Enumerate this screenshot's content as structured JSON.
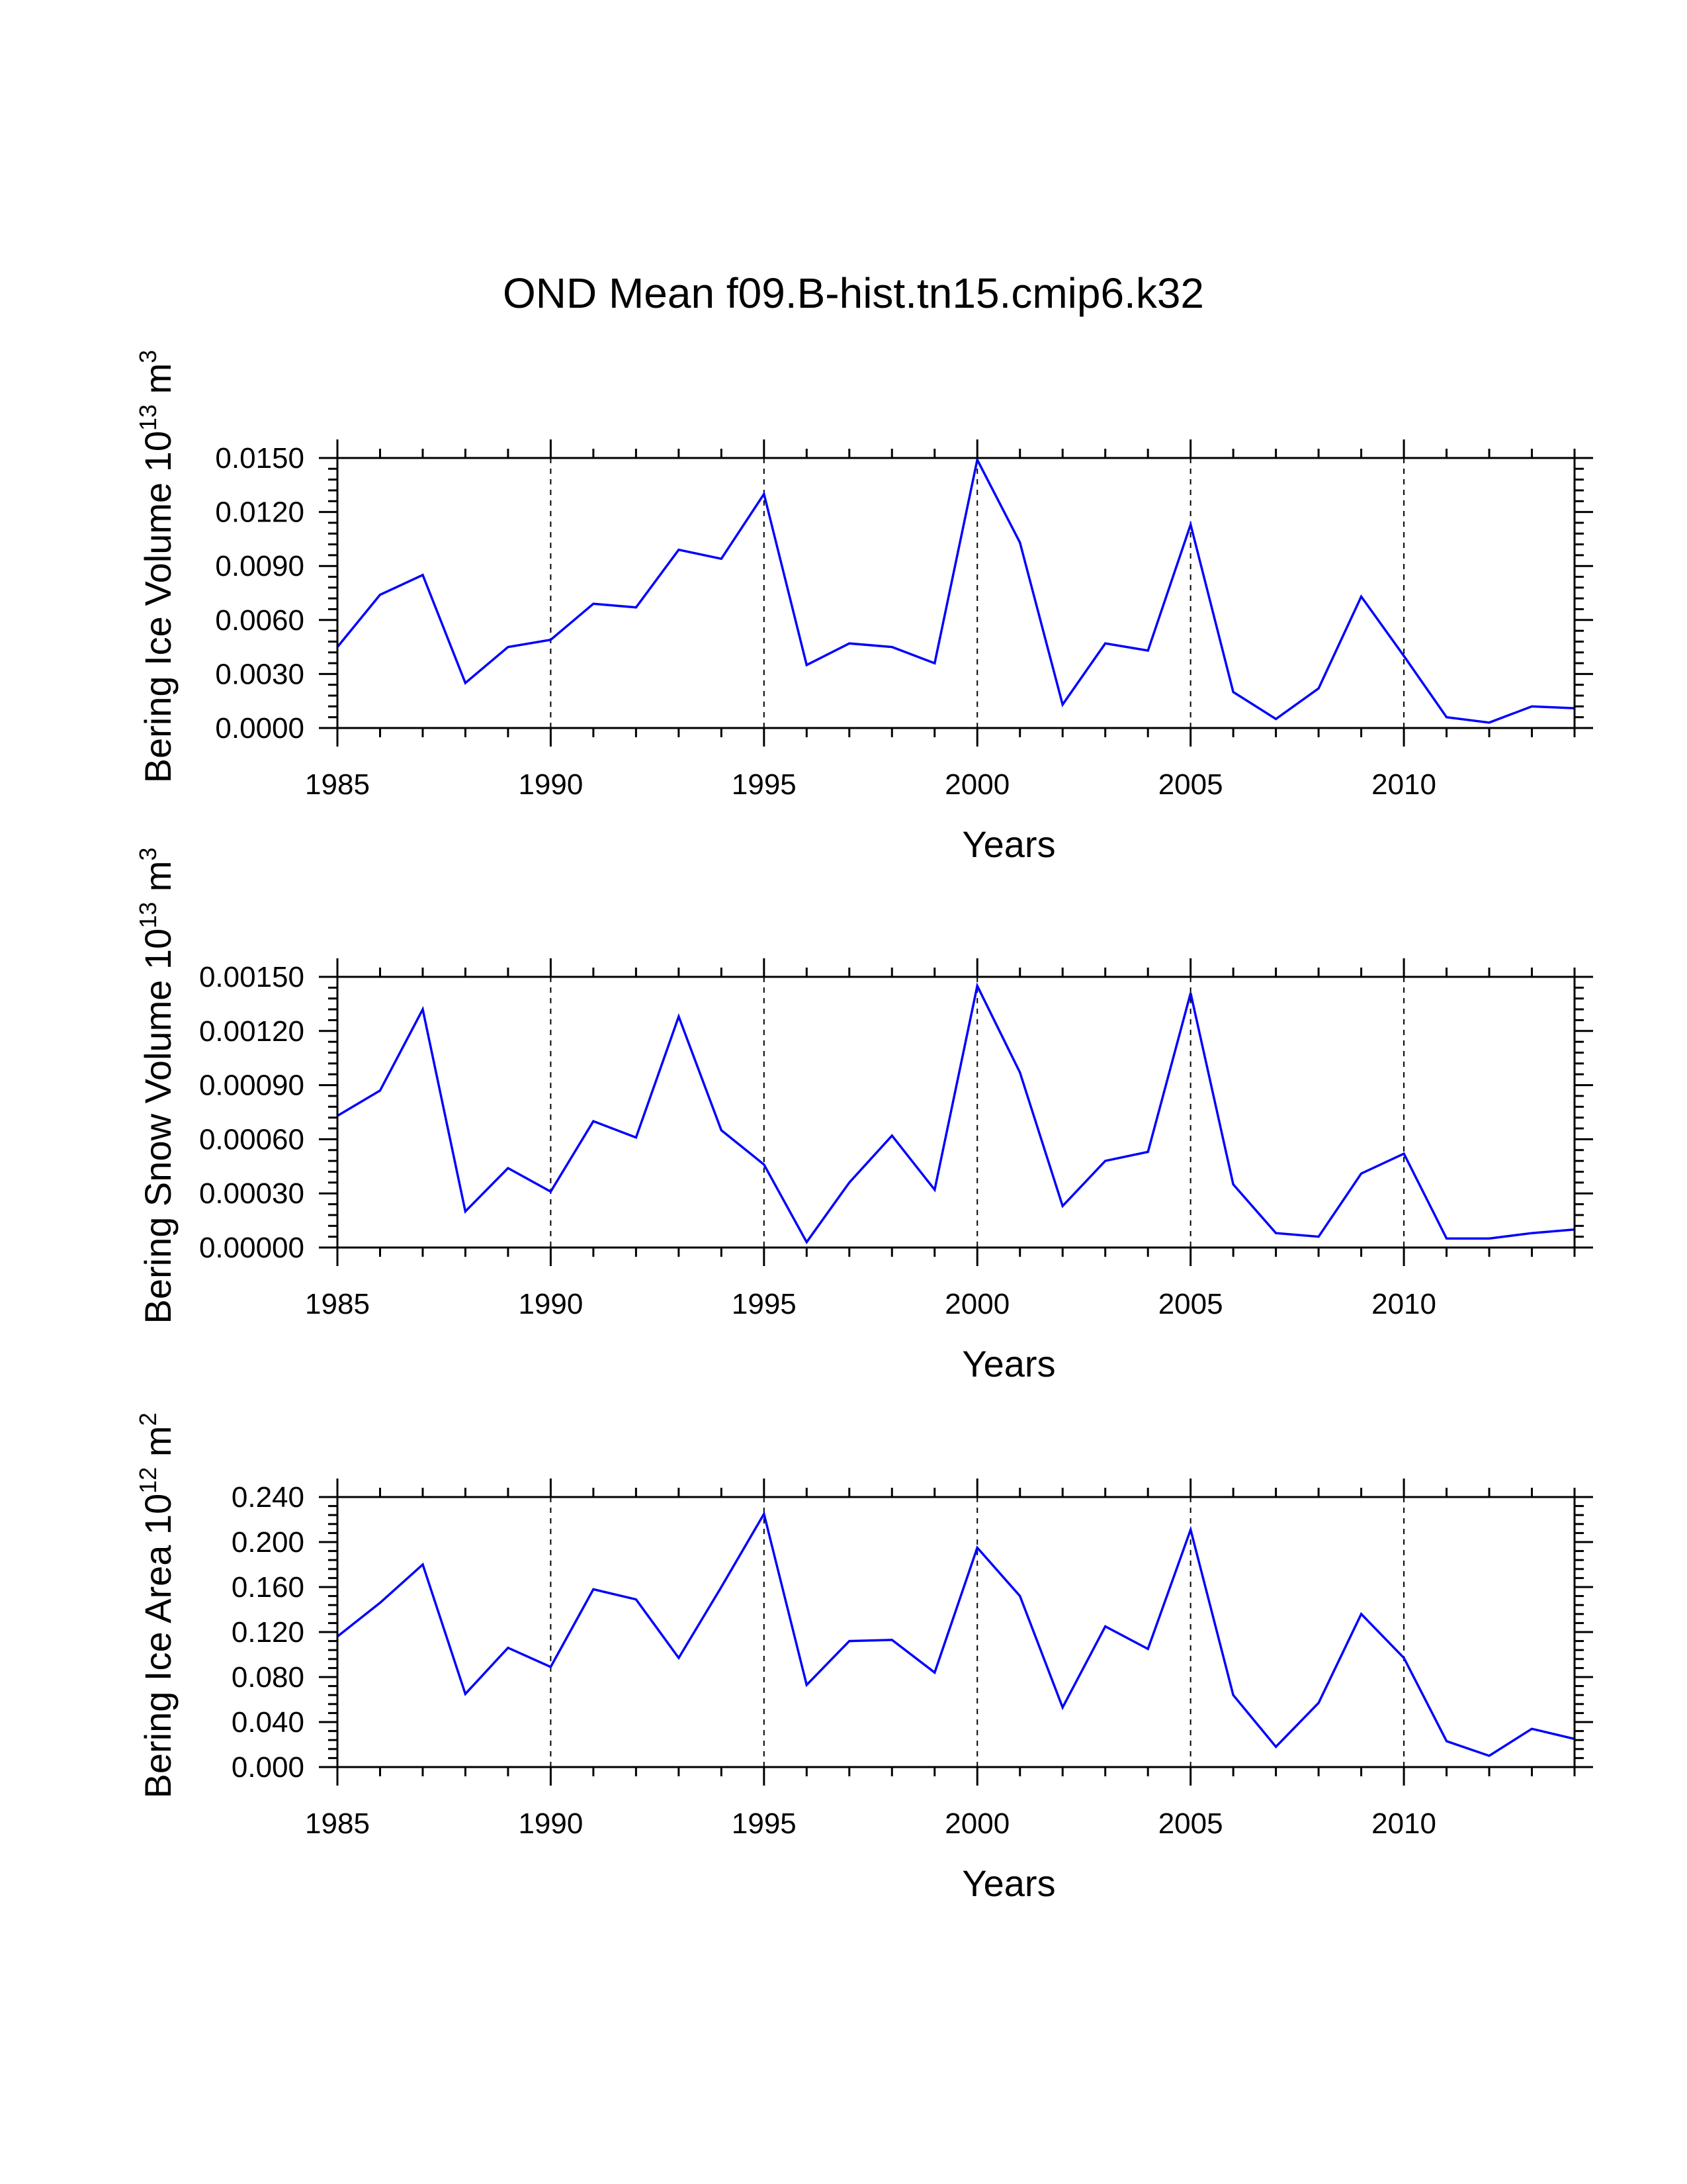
{
  "title": "OND Mean f09.B-hist.tn15.cmip6.k32",
  "chart_data": [
    {
      "type": "line",
      "name": "ice-volume",
      "ylabel": "Bering Ice Volume 10",
      "ylabel_exp": "13",
      "ylabel_unit": "m",
      "ylabel_unit_exp": "3",
      "xlabel": "Years",
      "xlim": [
        1985,
        2014
      ],
      "ylim": [
        0.0,
        0.015
      ],
      "yticks": [
        "0.0000",
        "0.0030",
        "0.0060",
        "0.0090",
        "0.0120",
        "0.0150"
      ],
      "ytick_values": [
        0.0,
        0.003,
        0.006,
        0.009,
        0.012,
        0.015
      ],
      "xticks": [
        "1985",
        "1990",
        "1995",
        "2000",
        "2005",
        "2010"
      ],
      "xtick_values": [
        1985,
        1990,
        1995,
        2000,
        2005,
        2010
      ],
      "grid_x": [
        1990,
        1995,
        2000,
        2005,
        2010
      ],
      "color": "#0000ff",
      "x": [
        1985,
        1986,
        1987,
        1988,
        1989,
        1990,
        1991,
        1992,
        1993,
        1994,
        1995,
        1996,
        1997,
        1998,
        1999,
        2000,
        2001,
        2002,
        2003,
        2004,
        2005,
        2006,
        2007,
        2008,
        2009,
        2010,
        2011,
        2012,
        2013,
        2014
      ],
      "y": [
        0.0045,
        0.0074,
        0.0085,
        0.0025,
        0.0045,
        0.0049,
        0.0069,
        0.0067,
        0.0099,
        0.0094,
        0.013,
        0.0035,
        0.0047,
        0.0045,
        0.0036,
        0.0149,
        0.0103,
        0.0013,
        0.0047,
        0.0043,
        0.0113,
        0.002,
        0.0005,
        0.0022,
        0.0073,
        0.004,
        0.0006,
        0.0003,
        0.0012,
        0.0011
      ]
    },
    {
      "type": "line",
      "name": "snow-volume",
      "ylabel": "Bering Snow Volume 10",
      "ylabel_exp": "13",
      "ylabel_unit": "m",
      "ylabel_unit_exp": "3",
      "xlabel": "Years",
      "xlim": [
        1985,
        2014
      ],
      "ylim": [
        0.0,
        0.0015
      ],
      "yticks": [
        "0.00000",
        "0.00030",
        "0.00060",
        "0.00090",
        "0.00120",
        "0.00150"
      ],
      "ytick_values": [
        0.0,
        0.0003,
        0.0006,
        0.0009,
        0.0012,
        0.0015
      ],
      "xticks": [
        "1985",
        "1990",
        "1995",
        "2000",
        "2005",
        "2010"
      ],
      "xtick_values": [
        1985,
        1990,
        1995,
        2000,
        2005,
        2010
      ],
      "grid_x": [
        1990,
        1995,
        2000,
        2005,
        2010
      ],
      "color": "#0000ff",
      "x": [
        1985,
        1986,
        1987,
        1988,
        1989,
        1990,
        1991,
        1992,
        1993,
        1994,
        1995,
        1996,
        1997,
        1998,
        1999,
        2000,
        2001,
        2002,
        2003,
        2004,
        2005,
        2006,
        2007,
        2008,
        2009,
        2010,
        2011,
        2012,
        2013,
        2014
      ],
      "y": [
        0.00073,
        0.00087,
        0.00132,
        0.0002,
        0.00044,
        0.00031,
        0.0007,
        0.00061,
        0.00128,
        0.00065,
        0.00046,
        3e-05,
        0.00036,
        0.00062,
        0.00032,
        0.00145,
        0.00097,
        0.00023,
        0.00048,
        0.00053,
        0.00141,
        0.00035,
        8e-05,
        6e-05,
        0.00041,
        0.00052,
        5e-05,
        5e-05,
        8e-05,
        0.0001
      ]
    },
    {
      "type": "line",
      "name": "ice-area",
      "ylabel": "Bering Ice Area 10",
      "ylabel_exp": "12",
      "ylabel_unit": "m",
      "ylabel_unit_exp": "2",
      "xlabel": "Years",
      "xlim": [
        1985,
        2014
      ],
      "ylim": [
        0.0,
        0.24
      ],
      "yticks": [
        "0.000",
        "0.040",
        "0.080",
        "0.120",
        "0.160",
        "0.200",
        "0.240"
      ],
      "ytick_values": [
        0.0,
        0.04,
        0.08,
        0.12,
        0.16,
        0.2,
        0.24
      ],
      "xticks": [
        "1985",
        "1990",
        "1995",
        "2000",
        "2005",
        "2010"
      ],
      "xtick_values": [
        1985,
        1990,
        1995,
        2000,
        2005,
        2010
      ],
      "grid_x": [
        1990,
        1995,
        2000,
        2005,
        2010
      ],
      "color": "#0000ff",
      "x": [
        1985,
        1986,
        1987,
        1988,
        1989,
        1990,
        1991,
        1992,
        1993,
        1994,
        1995,
        1996,
        1997,
        1998,
        1999,
        2000,
        2001,
        2002,
        2003,
        2004,
        2005,
        2006,
        2007,
        2008,
        2009,
        2010,
        2011,
        2012,
        2013,
        2014
      ],
      "y": [
        0.116,
        0.146,
        0.18,
        0.065,
        0.106,
        0.089,
        0.158,
        0.149,
        0.097,
        0.16,
        0.225,
        0.073,
        0.112,
        0.113,
        0.084,
        0.195,
        0.152,
        0.053,
        0.125,
        0.105,
        0.211,
        0.064,
        0.018,
        0.057,
        0.136,
        0.097,
        0.023,
        0.01,
        0.034,
        0.025
      ]
    }
  ]
}
